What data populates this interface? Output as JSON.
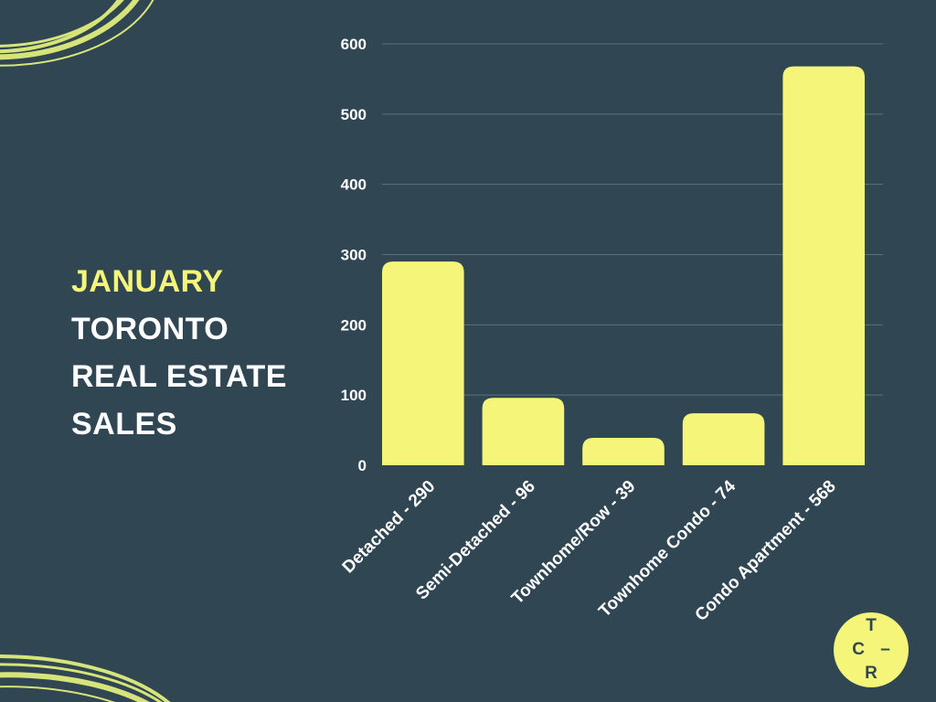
{
  "title": {
    "line1": "JANUARY",
    "line2": "TORONTO",
    "line3": "REAL ESTATE",
    "line4": "SALES"
  },
  "logo": {
    "text": "T C – R"
  },
  "colors": {
    "background": "#304653",
    "accent": "#f5f57a",
    "text": "#ffffff",
    "gridline": "#5d707b"
  },
  "decorations": {
    "top_left": "swirl-ring",
    "bottom_left": "swirl-ring"
  },
  "chart_data": {
    "type": "bar",
    "categories": [
      "Detached - 290",
      "Semi-Detached - 96",
      "Townhome/Row - 39",
      "Townhome Condo - 74",
      "Condo Apartment - 568"
    ],
    "values": [
      290,
      96,
      39,
      74,
      568
    ],
    "ylim": [
      0,
      600
    ],
    "yticks": [
      0,
      100,
      200,
      300,
      400,
      500,
      600
    ],
    "grid": true,
    "legend": "none"
  }
}
